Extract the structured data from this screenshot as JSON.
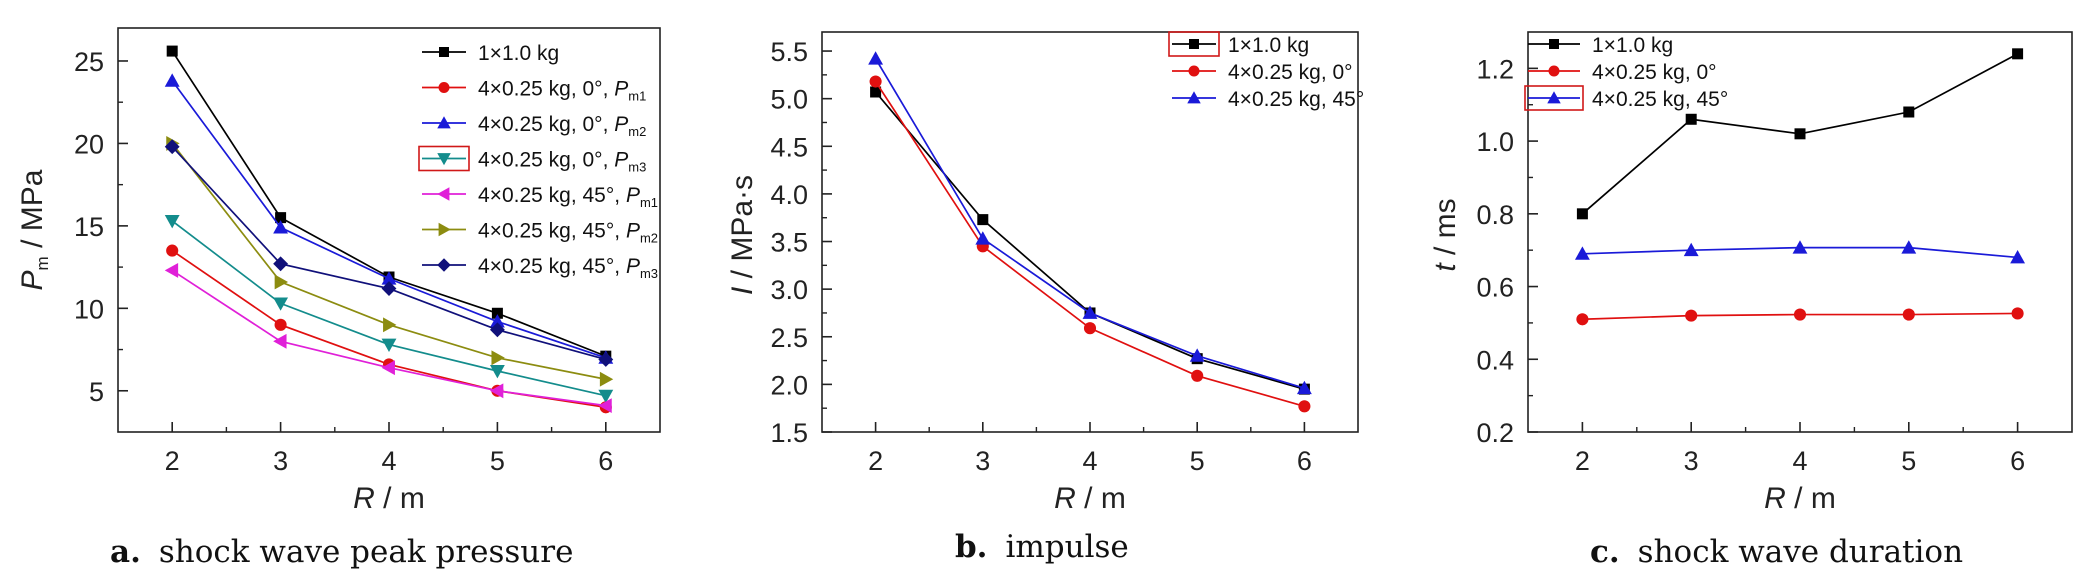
{
  "chart_data": [
    {
      "type": "line",
      "caption_letter": "a.",
      "caption_text": "shock wave peak pressure",
      "xlabel_var": "R",
      "xlabel_unit": " / m",
      "ylabel_var": "P",
      "ylabel_sub": "m",
      "ylabel_unit": " / MPa",
      "xlim": [
        1.5,
        6.5
      ],
      "ylim": [
        2.5,
        27
      ],
      "xticks": [
        2,
        3,
        4,
        5,
        6
      ],
      "yticks": [
        5,
        10,
        15,
        20,
        25
      ],
      "x": [
        2,
        3,
        4,
        5,
        6
      ],
      "legend_position": "top-right",
      "series": [
        {
          "name": "1×1.0 kg",
          "sub": "",
          "marker": "square",
          "color": "#000000",
          "values": [
            25.6,
            15.5,
            11.9,
            9.7,
            7.1
          ]
        },
        {
          "name": "4×0.25 kg, 0°, ",
          "var": "P",
          "sub": "m1",
          "marker": "circle",
          "color": "#e01010",
          "values": [
            13.5,
            9.0,
            6.6,
            5.0,
            4.0
          ]
        },
        {
          "name": "4×0.25 kg, 0°, ",
          "var": "P",
          "sub": "m2",
          "marker": "triangle-up",
          "color": "#1a1ad8",
          "values": [
            23.8,
            14.9,
            11.8,
            9.2,
            7.0
          ]
        },
        {
          "name": "4×0.25 kg, 0°, ",
          "var": "P",
          "sub": "m3",
          "marker": "triangle-down",
          "color": "#138c8c",
          "values": [
            15.3,
            10.3,
            7.8,
            6.2,
            4.7
          ]
        },
        {
          "name": "4×0.25 kg, 45°, ",
          "var": "P",
          "sub": "m1",
          "marker": "triangle-left",
          "color": "#e020d8",
          "values": [
            12.3,
            8.0,
            6.4,
            5.0,
            4.1
          ]
        },
        {
          "name": "4×0.25 kg, 45°, ",
          "var": "P",
          "sub": "m2",
          "marker": "triangle-right",
          "color": "#8c8c10",
          "values": [
            20.0,
            11.6,
            9.0,
            7.0,
            5.7
          ]
        },
        {
          "name": "4×0.25 kg, 45°, ",
          "var": "P",
          "sub": "m3",
          "marker": "diamond",
          "color": "#10107a",
          "values": [
            19.8,
            12.7,
            11.2,
            8.7,
            6.9
          ]
        }
      ]
    },
    {
      "type": "line",
      "caption_letter": "b.",
      "caption_text": "impulse",
      "xlabel_var": "R",
      "xlabel_unit": " / m",
      "ylabel_var": "I",
      "ylabel_sub": "",
      "ylabel_unit": " / MPa·s",
      "xlim": [
        1.5,
        6.5
      ],
      "ylim": [
        1.5,
        5.7
      ],
      "xticks": [
        2,
        3,
        4,
        5,
        6
      ],
      "yticks": [
        1.5,
        2.0,
        2.5,
        3.0,
        3.5,
        4.0,
        4.5,
        5.0,
        5.5
      ],
      "x": [
        2,
        3,
        4,
        5,
        6
      ],
      "legend_position": "top-right",
      "series": [
        {
          "name": "1×1.0 kg",
          "sub": "",
          "marker": "square",
          "color": "#000000",
          "values": [
            5.07,
            3.73,
            2.75,
            2.27,
            1.95
          ]
        },
        {
          "name": "4×0.25 kg, 0°",
          "sub": "",
          "marker": "circle",
          "color": "#e01010",
          "values": [
            5.18,
            3.45,
            2.59,
            2.09,
            1.77
          ]
        },
        {
          "name": "4×0.25 kg, 45°",
          "sub": "",
          "marker": "triangle-up",
          "color": "#1a1ad8",
          "values": [
            5.42,
            3.53,
            2.75,
            2.3,
            1.96
          ]
        }
      ]
    },
    {
      "type": "line",
      "caption_letter": "c.",
      "caption_text": "shock wave duration",
      "xlabel_var": "R",
      "xlabel_unit": " / m",
      "ylabel_var": "t",
      "ylabel_sub": "",
      "ylabel_unit": " / ms",
      "xlim": [
        1.5,
        6.5
      ],
      "ylim": [
        0.2,
        1.3
      ],
      "xticks": [
        2,
        3,
        4,
        5,
        6
      ],
      "yticks": [
        0.2,
        0.4,
        0.6,
        0.8,
        1.0,
        1.2
      ],
      "x": [
        2,
        3,
        4,
        5,
        6
      ],
      "legend_position": "top-left",
      "series": [
        {
          "name": "1×1.0 kg",
          "sub": "",
          "marker": "square",
          "color": "#000000",
          "values": [
            0.8,
            1.06,
            1.02,
            1.08,
            1.24
          ]
        },
        {
          "name": "4×0.25 kg, 0°",
          "sub": "",
          "marker": "circle",
          "color": "#e01010",
          "values": [
            0.51,
            0.52,
            0.523,
            0.523,
            0.526
          ]
        },
        {
          "name": "4×0.25 kg, 45°",
          "sub": "",
          "marker": "triangle-up",
          "color": "#1a1ad8",
          "values": [
            0.69,
            0.7,
            0.707,
            0.707,
            0.68
          ]
        }
      ]
    }
  ]
}
